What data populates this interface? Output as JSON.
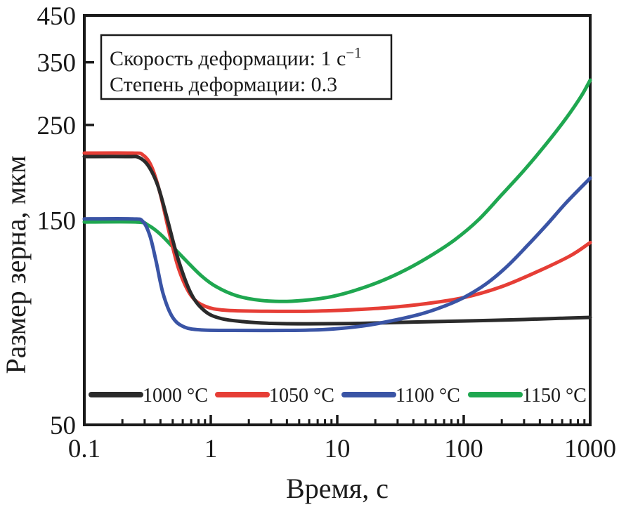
{
  "chart_data": {
    "type": "line",
    "title": "",
    "xlabel": "Время, с",
    "ylabel": "Размер зерна, мкм",
    "x_scale": "log",
    "y_scale": "log",
    "xlim": [
      0.1,
      1000
    ],
    "ylim": [
      50,
      450
    ],
    "x_tick_values": [
      0.1,
      1,
      10,
      100,
      1000
    ],
    "x_tick_labels": [
      "0.1",
      "1",
      "10",
      "100",
      "1000"
    ],
    "y_tick_values": [
      450,
      350,
      250,
      150,
      50
    ],
    "y_tick_labels": [
      "450",
      "350",
      "250",
      "150",
      "50"
    ],
    "grid": false,
    "frame_color": "#1a1a1a",
    "legend": {
      "position": "inside-bottom",
      "entries": [
        "1000 °C",
        "1050 °C",
        "1100 °C",
        "1150 °C"
      ]
    },
    "annotation": {
      "line1": "Скорость деформации: 1 с",
      "line1_sup": "−1",
      "line2": "Степень деформации: 0.3"
    },
    "draw_order": [
      3,
      1,
      0,
      2
    ],
    "series": [
      {
        "name": "1000 °C",
        "color": "#2b2b2b",
        "points": [
          [
            0.1,
            211
          ],
          [
            0.22,
            211
          ],
          [
            0.27,
            210
          ],
          [
            0.32,
            201
          ],
          [
            0.38,
            181
          ],
          [
            0.45,
            152
          ],
          [
            0.55,
            122
          ],
          [
            0.7,
            101
          ],
          [
            0.9,
            92
          ],
          [
            1.2,
            88.5
          ],
          [
            1.8,
            87
          ],
          [
            3,
            86.2
          ],
          [
            6,
            86
          ],
          [
            15,
            86.2
          ],
          [
            40,
            86.8
          ],
          [
            100,
            87.3
          ],
          [
            300,
            88
          ],
          [
            600,
            88.6
          ],
          [
            1000,
            89
          ]
        ]
      },
      {
        "name": "1050 °C",
        "color": "#e63e36",
        "points": [
          [
            0.1,
            215
          ],
          [
            0.24,
            215
          ],
          [
            0.29,
            213
          ],
          [
            0.34,
            200
          ],
          [
            0.4,
            172
          ],
          [
            0.47,
            140
          ],
          [
            0.56,
            115
          ],
          [
            0.7,
            100
          ],
          [
            0.9,
            94.5
          ],
          [
            1.3,
            92.5
          ],
          [
            2.5,
            92
          ],
          [
            6,
            92
          ],
          [
            12,
            92.6
          ],
          [
            25,
            93.8
          ],
          [
            50,
            95.8
          ],
          [
            100,
            99
          ],
          [
            200,
            105
          ],
          [
            400,
            114.5
          ],
          [
            700,
            124
          ],
          [
            1000,
            133
          ]
        ]
      },
      {
        "name": "1100 °C",
        "color": "#3a54a5",
        "points": [
          [
            0.1,
            151
          ],
          [
            0.24,
            151
          ],
          [
            0.29,
            149
          ],
          [
            0.33,
            138
          ],
          [
            0.37,
            120
          ],
          [
            0.42,
            101
          ],
          [
            0.5,
            89
          ],
          [
            0.62,
            84.5
          ],
          [
            0.85,
            83.2
          ],
          [
            1.5,
            83
          ],
          [
            4,
            83
          ],
          [
            8,
            83.4
          ],
          [
            15,
            84.8
          ],
          [
            25,
            87
          ],
          [
            45,
            90.5
          ],
          [
            70,
            94.5
          ],
          [
            100,
            99
          ],
          [
            150,
            106.5
          ],
          [
            220,
            117
          ],
          [
            320,
            131
          ],
          [
            450,
            146
          ],
          [
            650,
            165
          ],
          [
            1000,
            188
          ]
        ]
      },
      {
        "name": "1150 °C",
        "color": "#1fa750",
        "points": [
          [
            0.1,
            148.5
          ],
          [
            0.26,
            148.5
          ],
          [
            0.32,
            146
          ],
          [
            0.4,
            139
          ],
          [
            0.5,
            130
          ],
          [
            0.65,
            120
          ],
          [
            0.85,
            111
          ],
          [
            1.1,
            105
          ],
          [
            1.6,
            100
          ],
          [
            2.5,
            97.5
          ],
          [
            4,
            97
          ],
          [
            6,
            97.8
          ],
          [
            9,
            99.5
          ],
          [
            14,
            103
          ],
          [
            22,
            108
          ],
          [
            35,
            115
          ],
          [
            55,
            124
          ],
          [
            85,
            135
          ],
          [
            130,
            150
          ],
          [
            200,
            172
          ],
          [
            300,
            196
          ],
          [
            450,
            226
          ],
          [
            650,
            260
          ],
          [
            850,
            292
          ],
          [
            1000,
            318
          ]
        ]
      }
    ]
  }
}
